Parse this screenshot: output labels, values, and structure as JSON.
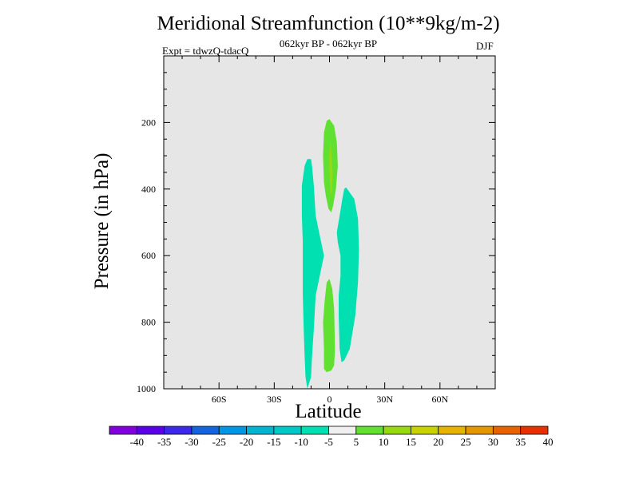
{
  "chart_data": {
    "type": "contour",
    "title": "Meridional Streamfunction (10**9kg/m-2)",
    "subtitle": "062kyr BP - 062kyr BP",
    "left_label": "Expt = tdwzQ-tdacQ",
    "right_label": "DJF",
    "xlabel": "Latitude",
    "ylabel": "Pressure (in hPa)",
    "xlim": [
      -90,
      90
    ],
    "ylim": [
      1000,
      0
    ],
    "x_ticks": [
      {
        "value": -60,
        "label": "60S"
      },
      {
        "value": -30,
        "label": "30S"
      },
      {
        "value": 0,
        "label": "0"
      },
      {
        "value": 30,
        "label": "30N"
      },
      {
        "value": 60,
        "label": "60N"
      }
    ],
    "y_ticks": [
      {
        "value": 200,
        "label": "200"
      },
      {
        "value": 400,
        "label": "400"
      },
      {
        "value": 600,
        "label": "600"
      },
      {
        "value": 800,
        "label": "800"
      },
      {
        "value": 1000,
        "label": "1000"
      }
    ],
    "background_color": "#e6e6e6",
    "regions": [
      {
        "name": "negative-cell-south",
        "level_range": [
          -10,
          -5
        ],
        "color": "#00e0b0",
        "points": [
          [
            -12,
            1000
          ],
          [
            -10,
            965
          ],
          [
            -9.5,
            905
          ],
          [
            -8.5,
            820
          ],
          [
            -7.5,
            720
          ],
          [
            -4.5,
            640
          ],
          [
            -3,
            600
          ],
          [
            -4.5,
            560
          ],
          [
            -7.5,
            480
          ],
          [
            -8.5,
            390
          ],
          [
            -9.5,
            330
          ],
          [
            -10,
            310
          ],
          [
            -12,
            310
          ],
          [
            -13.5,
            330
          ],
          [
            -15,
            390
          ],
          [
            -15,
            480
          ],
          [
            -14.5,
            560
          ],
          [
            -14.5,
            640
          ],
          [
            -14.5,
            720
          ],
          [
            -14,
            820
          ],
          [
            -13.5,
            905
          ],
          [
            -13,
            965
          ]
        ]
      },
      {
        "name": "negative-cell-north",
        "level_range": [
          -10,
          -5
        ],
        "color": "#00e0b0",
        "points": [
          [
            6.5,
            920
          ],
          [
            8,
            915
          ],
          [
            11,
            880
          ],
          [
            14,
            780
          ],
          [
            15.5,
            680
          ],
          [
            16,
            580
          ],
          [
            15.5,
            490
          ],
          [
            13.5,
            430
          ],
          [
            9,
            395
          ],
          [
            8,
            400
          ],
          [
            7,
            430
          ],
          [
            5.5,
            480
          ],
          [
            4,
            530
          ],
          [
            4.5,
            560
          ],
          [
            6,
            600
          ],
          [
            6,
            660
          ],
          [
            5,
            720
          ],
          [
            5,
            780
          ],
          [
            5.5,
            880
          ]
        ]
      },
      {
        "name": "positive-cell-upper",
        "level_range": [
          5,
          10
        ],
        "color": "#60e030",
        "points": [
          [
            -1.5,
            195
          ],
          [
            0,
            190
          ],
          [
            2.5,
            210
          ],
          [
            4,
            260
          ],
          [
            4.5,
            330
          ],
          [
            3.5,
            400
          ],
          [
            2,
            450
          ],
          [
            1,
            470
          ],
          [
            -0.5,
            460
          ],
          [
            -2,
            420
          ],
          [
            -3,
            380
          ],
          [
            -3.5,
            300
          ],
          [
            -3,
            230
          ]
        ]
      },
      {
        "name": "positive-cell-lower",
        "level_range": [
          5,
          10
        ],
        "color": "#60e030",
        "points": [
          [
            -1.5,
            680
          ],
          [
            0,
            670
          ],
          [
            1.5,
            700
          ],
          [
            2.5,
            760
          ],
          [
            3,
            880
          ],
          [
            2.5,
            930
          ],
          [
            1,
            945
          ],
          [
            -1.5,
            950
          ],
          [
            -3,
            940
          ],
          [
            -3,
            880
          ],
          [
            -3.5,
            800
          ],
          [
            -2.5,
            730
          ]
        ]
      },
      {
        "name": "positive-core-upper",
        "level_range": [
          10,
          15
        ],
        "color": "#96d812",
        "points": [
          [
            0.4,
            250
          ],
          [
            1.2,
            300
          ],
          [
            1.8,
            350
          ],
          [
            1.4,
            410
          ],
          [
            0.6,
            420
          ],
          [
            0,
            350
          ],
          [
            -0.1,
            300
          ]
        ]
      }
    ],
    "colorbar": {
      "labels": [
        "-40",
        "-35",
        "-30",
        "-25",
        "-20",
        "-15",
        "-10",
        "-5",
        "5",
        "10",
        "15",
        "20",
        "25",
        "30",
        "35",
        "40"
      ],
      "colors": [
        "#8200dc",
        "#5a00e6",
        "#3c28e6",
        "#1464dc",
        "#0096e6",
        "#00b4d2",
        "#00c8c8",
        "#00e0b0",
        "#f0f0f0",
        "#60e030",
        "#96d812",
        "#c8d200",
        "#e6b400",
        "#e69600",
        "#e66400",
        "#e63200"
      ]
    }
  }
}
